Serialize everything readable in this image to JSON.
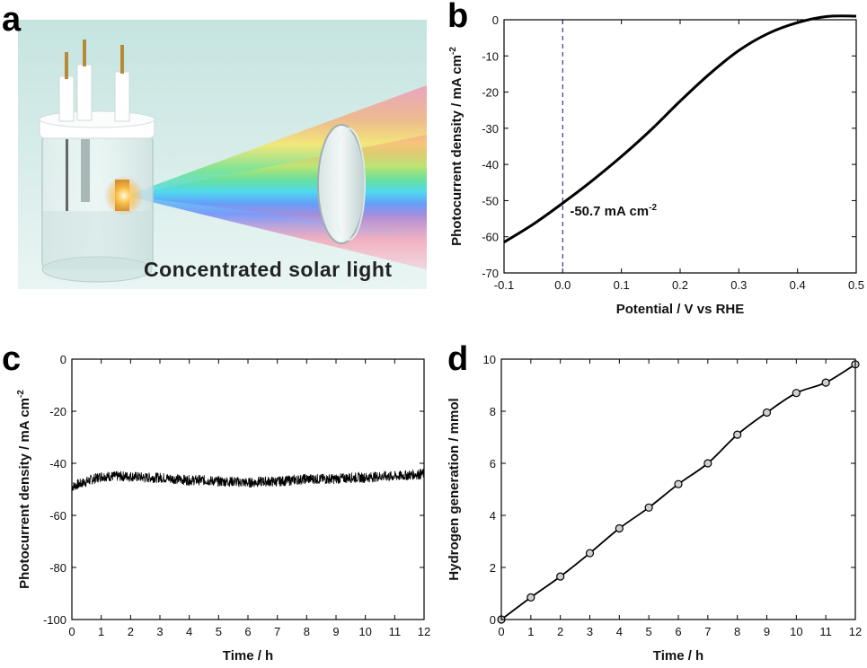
{
  "panels": {
    "a": {
      "letter": "a",
      "caption": "Concentrated solar light",
      "colors": {
        "background_top": "#c9e6e2",
        "background_bottom": "#e8f4f2",
        "glow": "#ffcc55"
      }
    },
    "b": {
      "letter": "b",
      "annotation": "-50.7 mA cm",
      "annotation_sup": "-2"
    },
    "c": {
      "letter": "c"
    },
    "d": {
      "letter": "d"
    }
  },
  "chart_data": [
    {
      "panel": "b",
      "type": "line",
      "xlabel": "Potential / V vs RHE",
      "ylabel": "Photocurrent density / mA cm",
      "ylabel_sup": "-2",
      "xlim": [
        -0.1,
        0.5
      ],
      "ylim": [
        -70,
        0
      ],
      "xticks": [
        -0.1,
        0.0,
        0.1,
        0.2,
        0.3,
        0.4,
        0.5
      ],
      "xtick_labels": [
        "-0.1",
        "0.0",
        "0.1",
        "0.2",
        "0.3",
        "0.4",
        "0.5"
      ],
      "yticks": [
        0,
        -10,
        -20,
        -30,
        -40,
        -50,
        -60,
        -70
      ],
      "ytick_labels": [
        "0",
        "-10",
        "-20",
        "-30",
        "-40",
        "-50",
        "-60",
        "-70"
      ],
      "reference_line_x": 0.0,
      "x": [
        -0.1,
        -0.05,
        0.0,
        0.05,
        0.1,
        0.15,
        0.2,
        0.25,
        0.3,
        0.35,
        0.4,
        0.45,
        0.5
      ],
      "y": [
        -61.5,
        -56.5,
        -50.7,
        -44.5,
        -37.8,
        -30.5,
        -22.5,
        -15.0,
        -8.5,
        -3.8,
        -0.8,
        0.9,
        1.0
      ],
      "color": "#000000",
      "ref_color": "#3a3a8c"
    },
    {
      "panel": "c",
      "type": "line",
      "xlabel": "Time / h",
      "ylabel": "Photocurrent density / mA cm",
      "ylabel_sup": "-2",
      "xlim": [
        0,
        12
      ],
      "ylim": [
        -100,
        0
      ],
      "xticks": [
        0,
        1,
        2,
        3,
        4,
        5,
        6,
        7,
        8,
        9,
        10,
        11,
        12
      ],
      "xtick_labels": [
        "0",
        "1",
        "2",
        "3",
        "4",
        "5",
        "6",
        "7",
        "8",
        "9",
        "10",
        "11",
        "12"
      ],
      "yticks": [
        0,
        -20,
        -40,
        -60,
        -80,
        -100
      ],
      "ytick_labels": [
        "0",
        "-20",
        "-40",
        "-60",
        "-80",
        "-100"
      ],
      "x": [
        0,
        0.5,
        1,
        1.5,
        2,
        2.5,
        3,
        3.5,
        4,
        4.5,
        5,
        5.5,
        6,
        6.5,
        7,
        7.5,
        8,
        8.5,
        9,
        9.5,
        10,
        10.5,
        11,
        11.5,
        12
      ],
      "y": [
        -49,
        -47,
        -45,
        -45,
        -45,
        -45.5,
        -45.5,
        -46,
        -46.5,
        -46.5,
        -47,
        -47,
        -47.5,
        -47,
        -47,
        -46.5,
        -46,
        -46,
        -46,
        -45.5,
        -45.5,
        -45,
        -45,
        -44.5,
        -44
      ],
      "noise_amplitude": 2.0,
      "color": "#000000"
    },
    {
      "panel": "d",
      "type": "line",
      "xlabel": "Time / h",
      "ylabel": "Hydrogen generation / mmol",
      "xlim": [
        0,
        12
      ],
      "ylim": [
        0,
        10
      ],
      "xticks": [
        0,
        1,
        2,
        3,
        4,
        5,
        6,
        7,
        8,
        9,
        10,
        11,
        12
      ],
      "xtick_labels": [
        "0",
        "1",
        "2",
        "3",
        "4",
        "5",
        "6",
        "7",
        "8",
        "9",
        "10",
        "11",
        "12"
      ],
      "yticks": [
        0,
        2,
        4,
        6,
        8,
        10
      ],
      "ytick_labels": [
        "0",
        "2",
        "4",
        "6",
        "8",
        "10"
      ],
      "x": [
        0,
        1,
        2,
        3,
        4,
        5,
        6,
        7,
        8,
        9,
        10,
        11,
        12
      ],
      "y": [
        0.0,
        0.85,
        1.65,
        2.55,
        3.5,
        4.3,
        5.2,
        6.0,
        7.1,
        7.95,
        8.7,
        9.1,
        9.8
      ],
      "color": "#000000"
    }
  ]
}
